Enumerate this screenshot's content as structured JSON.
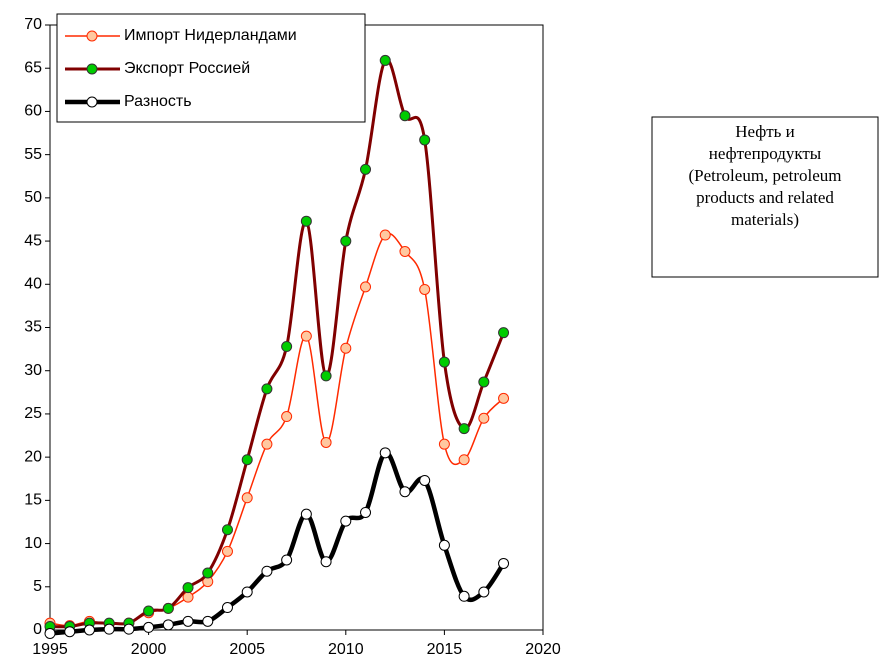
{
  "chart_data": {
    "type": "line",
    "x": [
      1995,
      1996,
      1997,
      1998,
      1999,
      2000,
      2001,
      2002,
      2003,
      2004,
      2005,
      2006,
      2007,
      2008,
      2009,
      2010,
      2011,
      2012,
      2013,
      2014,
      2015,
      2016,
      2017,
      2018
    ],
    "series": [
      {
        "name": "Импорт Нидерландами",
        "color": "#ff2a00",
        "marker_fill": "#ffc8a0",
        "values": [
          0.8,
          0.5,
          1.0,
          0.7,
          0.8,
          2.0,
          2.5,
          3.8,
          5.6,
          9.1,
          15.3,
          21.5,
          24.7,
          34.0,
          21.7,
          32.6,
          39.7,
          45.7,
          43.8,
          39.4,
          21.5,
          19.7,
          24.5,
          26.8
        ]
      },
      {
        "name": "Экспорт Россией",
        "color": "#800000",
        "marker_fill": "#00cc00",
        "values": [
          0.4,
          0.4,
          0.8,
          0.8,
          0.8,
          2.2,
          2.5,
          4.9,
          6.6,
          11.6,
          19.7,
          27.9,
          32.8,
          47.3,
          29.4,
          45.0,
          53.3,
          65.9,
          59.5,
          56.7,
          31.0,
          23.3,
          28.7,
          34.4
        ]
      },
      {
        "name": "Разность",
        "color": "#000000",
        "marker_fill": "#ffffff",
        "values": [
          -0.4,
          -0.2,
          0.0,
          0.1,
          0.1,
          0.3,
          0.6,
          1.0,
          1.0,
          2.6,
          4.4,
          6.8,
          8.1,
          13.4,
          7.9,
          12.6,
          13.6,
          20.5,
          16.0,
          17.3,
          9.8,
          3.9,
          4.4,
          7.7
        ]
      }
    ],
    "xlim": [
      1995,
      2020
    ],
    "xticks": [
      1995,
      2000,
      2005,
      2010,
      2015,
      2020
    ],
    "ylim": [
      0,
      70
    ],
    "yticks": [
      0,
      5,
      10,
      15,
      20,
      25,
      30,
      35,
      40,
      45,
      50,
      55,
      60,
      65,
      70
    ],
    "grid": false,
    "legend": "top-left",
    "annotation": [
      "Нефть и",
      "нефтепродукты",
      "(Petroleum, petroleum",
      "products and related",
      "materials)"
    ]
  }
}
